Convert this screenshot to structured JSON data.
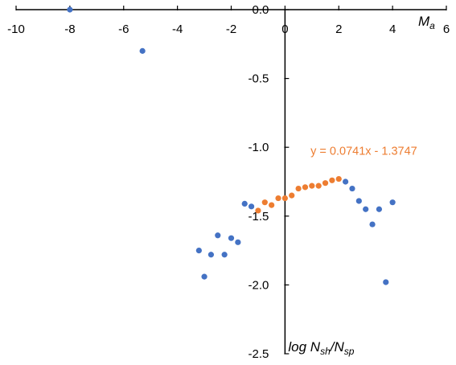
{
  "chart_data": {
    "type": "scatter",
    "xlim": [
      -10,
      6
    ],
    "ylim": [
      -2.5,
      0
    ],
    "xticks": [
      -10,
      -8,
      -6,
      -4,
      -2,
      0,
      2,
      4,
      6
    ],
    "xtick_labels": [
      "-10",
      "-8",
      "-6",
      "-4",
      "-2",
      "0",
      "2",
      "4",
      "6"
    ],
    "yticks": [
      0,
      -0.5,
      -1.0,
      -1.5,
      -2.0,
      -2.5
    ],
    "ytick_labels": [
      "0.0",
      "-0.5",
      "-1.0",
      "-1.5",
      "-2.0",
      "-2.5"
    ],
    "grid": false,
    "xlabel": "M",
    "xlabel_sub": "a",
    "ylabel_parts": {
      "lead": "log N",
      "sub1": "sh",
      "mid": "/N",
      "sub2": "sp"
    },
    "series": [
      {
        "color": "#4472C4",
        "points": [
          {
            "x": -8.0,
            "y": 0.0
          },
          {
            "x": -5.3,
            "y": -0.3
          },
          {
            "x": -3.2,
            "y": -1.75
          },
          {
            "x": -3.0,
            "y": -1.94
          },
          {
            "x": -2.75,
            "y": -1.78
          },
          {
            "x": -2.5,
            "y": -1.64
          },
          {
            "x": -2.25,
            "y": -1.78
          },
          {
            "x": -2.0,
            "y": -1.66
          },
          {
            "x": -1.75,
            "y": -1.69
          },
          {
            "x": -1.5,
            "y": -1.41
          },
          {
            "x": -1.25,
            "y": -1.43
          },
          {
            "x": 2.25,
            "y": -1.25
          },
          {
            "x": 2.5,
            "y": -1.3
          },
          {
            "x": 2.75,
            "y": -1.39
          },
          {
            "x": 3.0,
            "y": -1.45
          },
          {
            "x": 3.25,
            "y": -1.56
          },
          {
            "x": 3.5,
            "y": -1.45
          },
          {
            "x": 3.75,
            "y": -1.98
          },
          {
            "x": 4.0,
            "y": -1.4
          }
        ]
      },
      {
        "color": "#ED7D31",
        "points": [
          {
            "x": -1.0,
            "y": -1.46
          },
          {
            "x": -0.75,
            "y": -1.4
          },
          {
            "x": -0.5,
            "y": -1.42
          },
          {
            "x": -0.25,
            "y": -1.37
          },
          {
            "x": 0.0,
            "y": -1.37
          },
          {
            "x": 0.25,
            "y": -1.35
          },
          {
            "x": 0.5,
            "y": -1.3
          },
          {
            "x": 0.75,
            "y": -1.29
          },
          {
            "x": 1.0,
            "y": -1.28
          },
          {
            "x": 1.25,
            "y": -1.28
          },
          {
            "x": 1.5,
            "y": -1.26
          },
          {
            "x": 1.75,
            "y": -1.24
          },
          {
            "x": 2.0,
            "y": -1.23
          }
        ]
      }
    ],
    "annotations": [
      {
        "text": "y = 0.0741x - 1.3747",
        "color": "#ED7D31"
      }
    ]
  }
}
